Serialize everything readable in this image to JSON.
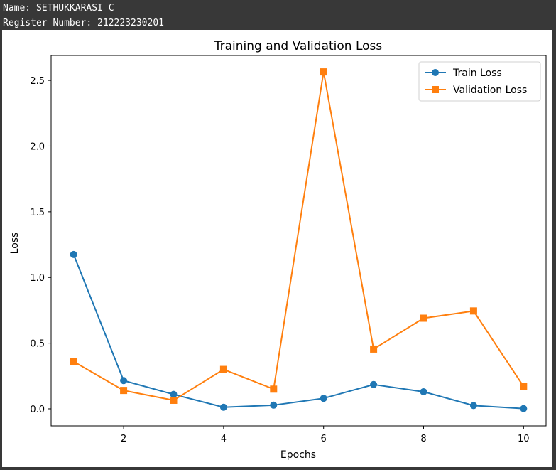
{
  "console": {
    "name_line": "Name: SETHUKKARASI C",
    "register_line": "Register Number: 212223230201"
  },
  "colors": {
    "train": "#1f77b4",
    "validation": "#ff7f0e",
    "console_bg": "#383838"
  },
  "chart_data": {
    "type": "line",
    "title": "Training and Validation Loss",
    "xlabel": "Epochs",
    "ylabel": "Loss",
    "x": [
      1,
      2,
      3,
      4,
      5,
      6,
      7,
      8,
      9,
      10
    ],
    "xticks": [
      2,
      4,
      6,
      8,
      10
    ],
    "yticks": [
      0.0,
      0.5,
      1.0,
      1.5,
      2.0,
      2.5
    ],
    "ytick_labels": [
      "0.0",
      "0.5",
      "1.0",
      "1.5",
      "2.0",
      "2.5"
    ],
    "xlim": [
      0.55,
      10.45
    ],
    "ylim": [
      -0.13,
      2.69
    ],
    "grid": false,
    "legend_position": "upper right",
    "series": [
      {
        "name": "Train Loss",
        "marker": "circle",
        "values": [
          1.175,
          0.215,
          0.11,
          0.012,
          0.028,
          0.08,
          0.185,
          0.13,
          0.025,
          0.002
        ]
      },
      {
        "name": "Validation Loss",
        "marker": "square",
        "values": [
          0.36,
          0.14,
          0.065,
          0.3,
          0.15,
          2.565,
          0.455,
          0.69,
          0.745,
          0.17
        ]
      }
    ]
  }
}
